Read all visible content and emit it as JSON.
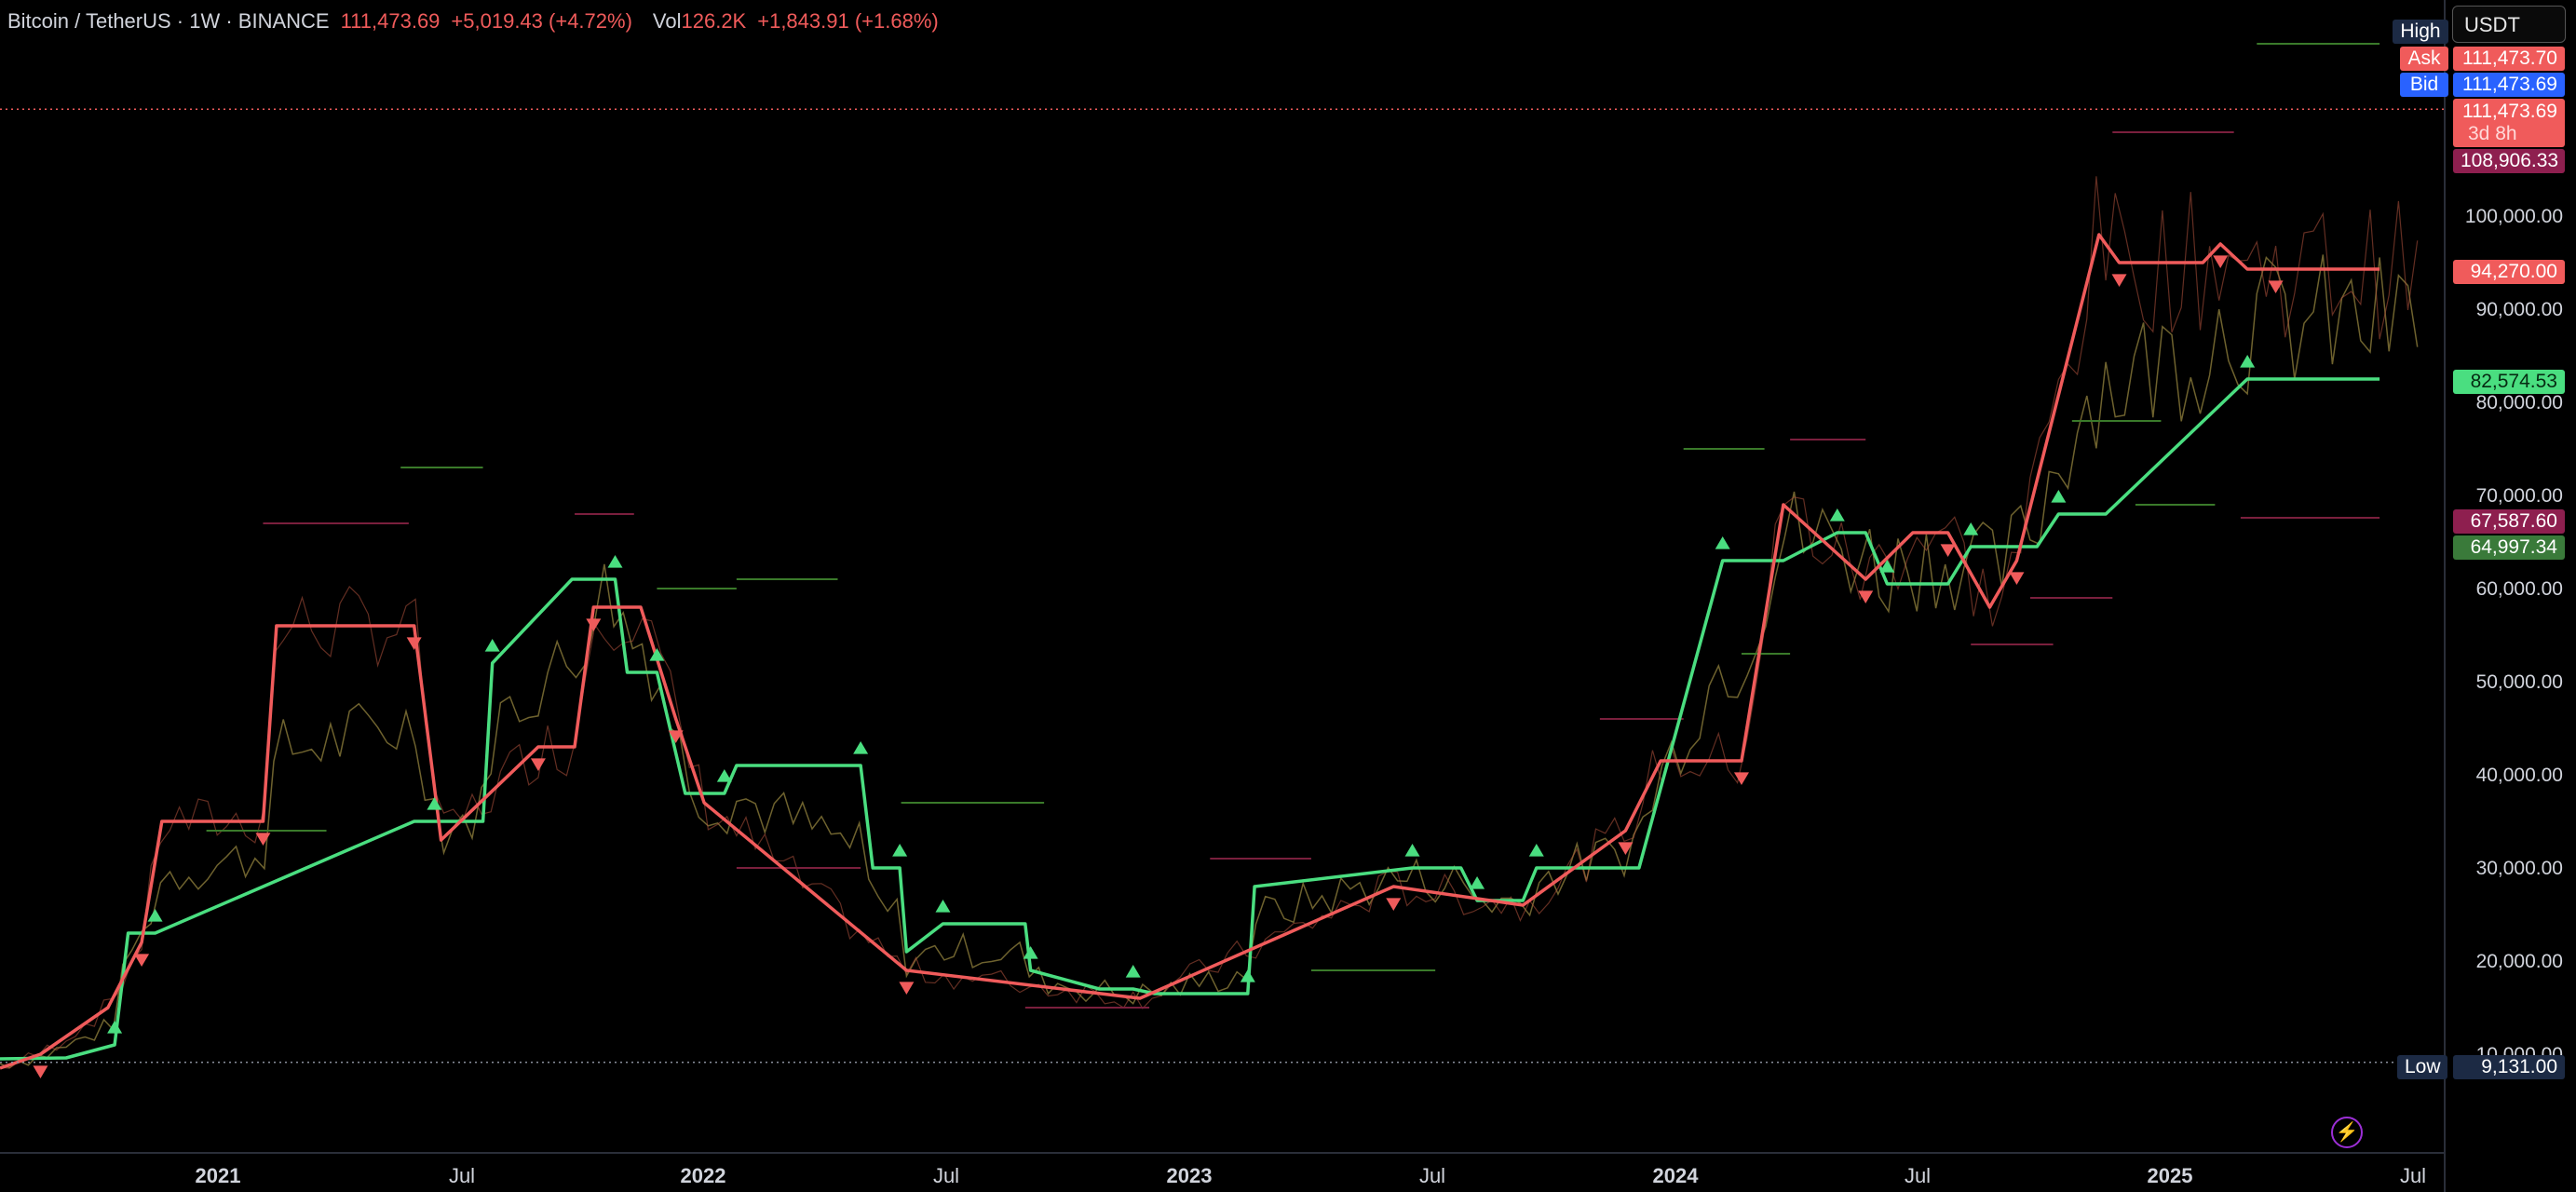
{
  "header": {
    "symbol": "Bitcoin / TetherUS · 1W · BINANCE",
    "price": "111,473.69",
    "change": "+5,019.43 (+4.72%)",
    "vol_label": "Vol",
    "vol_value": "126.2K",
    "vol_change": "+1,843.91 (+1.68%)"
  },
  "currency": "USDT",
  "price_tags": {
    "high_label": "High",
    "ask_label": "Ask",
    "ask_value": "111,473.70",
    "bid_label": "Bid",
    "bid_value": "111,473.69",
    "last_value": "111,473.69",
    "countdown": "3d 8h",
    "level_1": "108,906.33",
    "level_2": "94,270.00",
    "level_3": "82,574.53",
    "level_4": "67,587.60",
    "level_5": "64,997.34",
    "low_label": "Low",
    "low_value": "9,131.00"
  },
  "y_ticks": [
    "100,000.00",
    "90,000.00",
    "80,000.00",
    "70,000.00",
    "60,000.00",
    "50,000.00",
    "40,000.00",
    "30,000.00",
    "20,000.00",
    "10,000.00"
  ],
  "x_ticks": [
    "2021",
    "Jul",
    "2022",
    "Jul",
    "2023",
    "Jul",
    "2024",
    "Jul",
    "2025",
    "Jul"
  ],
  "colors": {
    "up": "#4ade80",
    "down": "#f05b5b",
    "dark_green": "#3a7a2a",
    "dark_red": "#7a1f3d",
    "bid": "#2962ff",
    "level_purple": "#8e1f4f",
    "level_red": "#f05b5b",
    "level_green": "#4ade80",
    "low_tag": "#1c2a44"
  },
  "chart_data": {
    "type": "line",
    "y_range": [
      7000,
      119000
    ],
    "x_start": "2020-09-01",
    "x_end": "2025-08-01",
    "current_price": 111473.69,
    "low": 9131,
    "series": [
      {
        "color": "up",
        "points": [
          [
            "2020-09-01",
            9500
          ],
          [
            "2020-10-20",
            9600
          ],
          [
            "2020-11-25",
            11000
          ],
          [
            "2020-12-05",
            23000
          ],
          [
            "2020-12-25",
            23000
          ],
          [
            "2021-07-05",
            35000
          ],
          [
            "2021-07-20",
            35000
          ],
          [
            "2021-08-25",
            35000
          ],
          [
            "2021-09-01",
            52000
          ],
          [
            "2021-10-30",
            61000
          ],
          [
            "2021-12-01",
            61000
          ],
          [
            "2021-12-10",
            51000
          ],
          [
            "2022-01-01",
            51000
          ],
          [
            "2022-01-22",
            38000
          ],
          [
            "2022-02-20",
            38000
          ],
          [
            "2022-03-01",
            41000
          ],
          [
            "2022-06-01",
            41000
          ],
          [
            "2022-06-10",
            30000
          ],
          [
            "2022-06-30",
            30000
          ],
          [
            "2022-07-05",
            21000
          ],
          [
            "2022-08-01",
            24000
          ],
          [
            "2022-10-01",
            24000
          ],
          [
            "2022-10-05",
            19000
          ],
          [
            "2022-11-25",
            17000
          ],
          [
            "2022-12-20",
            17000
          ],
          [
            "2023-01-05",
            16500
          ],
          [
            "2023-03-15",
            16500
          ],
          [
            "2023-03-20",
            28000
          ],
          [
            "2023-07-15",
            30000
          ],
          [
            "2023-08-20",
            30000
          ],
          [
            "2023-09-01",
            26500
          ],
          [
            "2023-10-05",
            26500
          ],
          [
            "2023-10-15",
            30000
          ],
          [
            "2023-12-30",
            30000
          ],
          [
            "2024-03-01",
            63000
          ],
          [
            "2024-04-15",
            63000
          ],
          [
            "2024-05-25",
            66000
          ],
          [
            "2024-06-15",
            66000
          ],
          [
            "2024-07-01",
            60500
          ],
          [
            "2024-08-15",
            60500
          ],
          [
            "2024-09-01",
            64500
          ],
          [
            "2024-10-20",
            64500
          ],
          [
            "2024-11-05",
            68000
          ],
          [
            "2024-12-10",
            68000
          ],
          [
            "2025-03-25",
            82500
          ],
          [
            "2025-07-01",
            82500
          ]
        ]
      },
      {
        "color": "down",
        "points": [
          [
            "2020-09-01",
            8500
          ],
          [
            "2020-10-01",
            10000
          ],
          [
            "2020-11-20",
            15000
          ],
          [
            "2020-12-15",
            22000
          ],
          [
            "2020-12-30",
            35000
          ],
          [
            "2021-03-15",
            35000
          ],
          [
            "2021-03-25",
            56000
          ],
          [
            "2021-07-05",
            56000
          ],
          [
            "2021-07-25",
            33000
          ],
          [
            "2021-10-05",
            43000
          ],
          [
            "2021-11-01",
            43000
          ],
          [
            "2021-11-15",
            58000
          ],
          [
            "2021-12-20",
            58000
          ],
          [
            "2022-01-15",
            46000
          ],
          [
            "2022-02-05",
            37000
          ],
          [
            "2022-07-05",
            19000
          ],
          [
            "2022-12-25",
            16000
          ],
          [
            "2023-07-01",
            28000
          ],
          [
            "2023-10-05",
            26000
          ],
          [
            "2023-12-20",
            34000
          ],
          [
            "2024-01-15",
            41500
          ],
          [
            "2024-03-15",
            41500
          ],
          [
            "2024-04-15",
            69000
          ],
          [
            "2024-06-15",
            61000
          ],
          [
            "2024-07-20",
            66000
          ],
          [
            "2024-08-15",
            66000
          ],
          [
            "2024-09-15",
            58000
          ],
          [
            "2024-10-05",
            63000
          ],
          [
            "2024-12-05",
            98000
          ],
          [
            "2024-12-20",
            95000
          ],
          [
            "2025-02-20",
            95000
          ],
          [
            "2025-03-05",
            97000
          ],
          [
            "2025-03-25",
            94300
          ],
          [
            "2025-04-15",
            94300
          ],
          [
            "2025-07-01",
            94300
          ]
        ]
      }
    ]
  }
}
